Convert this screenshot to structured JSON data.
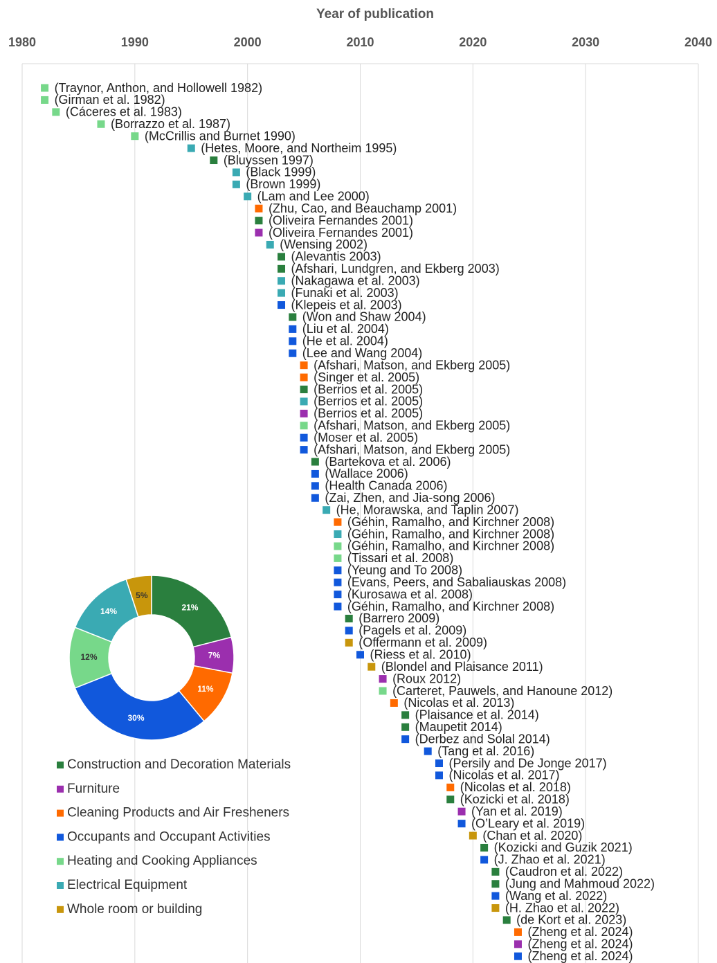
{
  "chart_data": [
    {
      "type": "timeline",
      "xlabel": "Year of publication",
      "xlim": [
        1980,
        2040
      ],
      "xticks": [
        1980,
        1990,
        2000,
        2010,
        2020,
        2030,
        2040
      ],
      "grid": true,
      "series": [
        {
          "name": "Construction and Decoration Materials",
          "color": "#2a7f3e"
        },
        {
          "name": "Furniture",
          "color": "#9b2fae"
        },
        {
          "name": "Cleaning Products and Air Fresheners",
          "color": "#ff6a00"
        },
        {
          "name": "Occupants and Occupant Activities",
          "color": "#1158dc"
        },
        {
          "name": "Heating and Cooking Appliances",
          "color": "#77d88a"
        },
        {
          "name": "Electrical Equipment",
          "color": "#3aaab3"
        },
        {
          "name": "Whole room or building",
          "color": "#c8960c"
        }
      ],
      "points": {
        "labels": [
          "(Traynor, Anthon, and Hollowell 1982)",
          "(Girman et al. 1982)",
          "(Cáceres et al. 1983)",
          "(Borrazzo et al. 1987)",
          "(McCrillis and Burnet 1990)",
          "(Hetes, Moore, and Northeim 1995)",
          "(Bluyssen 1997)",
          "(Black 1999)",
          "(Brown 1999)",
          "(Lam and Lee 2000)",
          "(Zhu, Cao, and Beauchamp 2001)",
          "(Oliveira Fernandes 2001)",
          "(Oliveira Fernandes 2001)",
          "(Wensing 2002)",
          "(Alevantis 2003)",
          "(Afshari, Lundgren, and Ekberg 2003)",
          "(Nakagawa et al. 2003)",
          "(Funaki et al. 2003)",
          "(Klepeis et al. 2003)",
          "(Won and Shaw 2004)",
          "(Liu et al. 2004)",
          "(He et al. 2004)",
          "(Lee and Wang 2004)",
          "(Afshari, Matson, and Ekberg 2005)",
          "(Singer et al. 2005)",
          "(Berrios et al. 2005)",
          "(Berrios et al. 2005)",
          "(Berrios et al. 2005)",
          "(Afshari, Matson, and Ekberg 2005)",
          "(Moser et al. 2005)",
          "(Afshari, Matson, and Ekberg 2005)",
          "(Bartekova et al. 2006)",
          "(Wallace 2006)",
          "(Health Canada 2006)",
          "(Zai, Zhen, and Jia-song 2006)",
          "(He, Morawska, and Taplin 2007)",
          "(Géhin, Ramalho, and Kirchner 2008)",
          "(Géhin, Ramalho, and Kirchner 2008)",
          "(Géhin, Ramalho, and Kirchner 2008)",
          "(Tissari et al. 2008)",
          "(Yeung and To 2008)",
          "(Evans, Peers, and Sabaliauskas 2008)",
          "(Kurosawa et al. 2008)",
          "(Géhin, Ramalho, and Kirchner 2008)",
          "(Barrero 2009)",
          "(Pagels et al. 2009)",
          "(Offermann et al. 2009)",
          "(Riess et al. 2010)",
          "(Blondel and Plaisance 2011)",
          "(Roux 2012)",
          "(Carteret, Pauwels, and Hanoune 2012)",
          "(Nicolas et al. 2013)",
          "(Plaisance et al. 2014)",
          "(Maupetit 2014)",
          "(Derbez and Solal 2014)",
          "(Tang et al. 2016)",
          "(Persily and De Jonge 2017)",
          "(Nicolas et al. 2017)",
          "(Nicolas et al. 2018)",
          "(Kozicki et al. 2018)",
          "(Yan et al. 2019)",
          "(O’Leary et al. 2019)",
          "(Chan et al. 2020)",
          "(Kozicki and Guzik 2021)",
          "(J. Zhao et al. 2021)",
          "(Caudron et al. 2022)",
          "(Jung and Mahmoud 2022)",
          "(Wang et al. 2022)",
          "(H. Zhao et al. 2022)",
          "(de Kort et al. 2023)",
          "(Zheng et al. 2024)",
          "(Zheng et al. 2024)",
          "(Zheng et al. 2024)"
        ],
        "x": [
          1982,
          1982,
          1983,
          1987,
          1990,
          1995,
          1997,
          1999,
          1999,
          2000,
          2001,
          2001,
          2001,
          2002,
          2003,
          2003,
          2003,
          2003,
          2003,
          2004,
          2004,
          2004,
          2004,
          2005,
          2005,
          2005,
          2005,
          2005,
          2005,
          2005,
          2005,
          2006,
          2006,
          2006,
          2006,
          2007,
          2008,
          2008,
          2008,
          2008,
          2008,
          2008,
          2008,
          2008,
          2009,
          2009,
          2009,
          2010,
          2011,
          2012,
          2012,
          2013,
          2014,
          2014,
          2014,
          2016,
          2017,
          2017,
          2018,
          2018,
          2019,
          2019,
          2020,
          2021,
          2021,
          2022,
          2022,
          2022,
          2022,
          2023,
          2024,
          2024,
          2024
        ],
        "group": [
          4,
          4,
          4,
          4,
          4,
          5,
          0,
          5,
          5,
          5,
          2,
          0,
          1,
          5,
          0,
          0,
          5,
          5,
          3,
          0,
          3,
          3,
          3,
          2,
          2,
          0,
          5,
          1,
          4,
          3,
          3,
          0,
          3,
          3,
          3,
          5,
          2,
          5,
          4,
          4,
          3,
          3,
          3,
          3,
          0,
          3,
          6,
          3,
          6,
          1,
          4,
          2,
          0,
          0,
          3,
          3,
          3,
          3,
          2,
          0,
          1,
          3,
          6,
          0,
          3,
          0,
          0,
          3,
          6,
          0,
          2,
          1,
          3
        ]
      }
    },
    {
      "type": "donut",
      "values": [
        21,
        7,
        11,
        30,
        12,
        14,
        5
      ],
      "value_labels": [
        "21%",
        "7%",
        "11%",
        "30%",
        "12%",
        "14%",
        "5%"
      ]
    }
  ]
}
